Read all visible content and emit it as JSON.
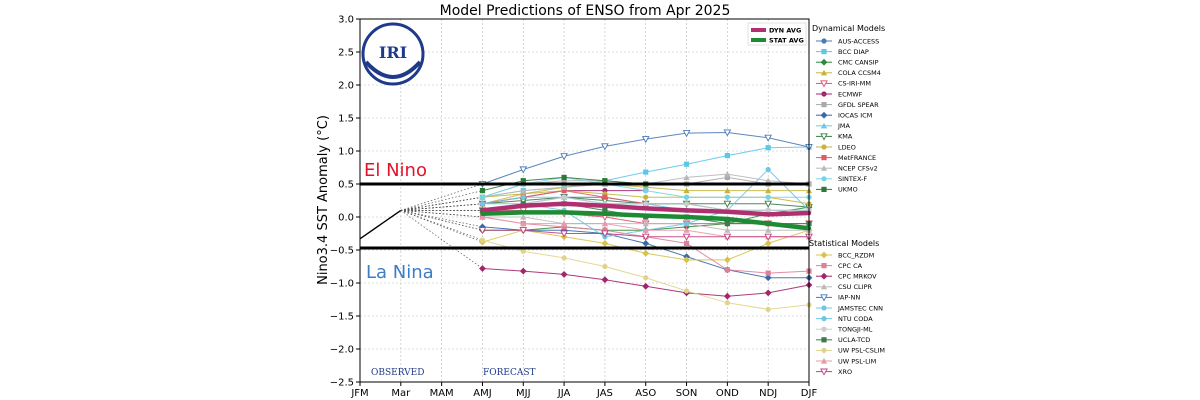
{
  "chart_data": {
    "type": "line",
    "title": "Model Predictions of ENSO from Apr 2025",
    "ylabel": "Nino3.4 SST Anomaly (°C)",
    "xlabel": "",
    "categories": [
      "JFM",
      "Mar",
      "MAM",
      "AMJ",
      "MJJ",
      "JJA",
      "JAS",
      "ASO",
      "SON",
      "OND",
      "NDJ",
      "DJF"
    ],
    "ylim": [
      -2.5,
      3.0
    ],
    "yticks": [
      "3.0",
      "2.5",
      "2.0",
      "1.5",
      "1.0",
      "0.5",
      "0.0",
      "−0.5",
      "−1.0",
      "−1.5",
      "−2.0",
      "−2.5"
    ],
    "ytick_values": [
      3.0,
      2.5,
      2.0,
      1.5,
      1.0,
      0.5,
      0.0,
      -0.5,
      -1.0,
      -1.5,
      -2.0,
      -2.5
    ],
    "grid": true,
    "thresholds": {
      "el_nino": 0.5,
      "la_nina": -0.47
    },
    "annotations": {
      "el_nino": "El Nino",
      "la_nina": "La Nina",
      "observed": "OBSERVED",
      "forecast": "FORECAST",
      "logo": "IRI"
    },
    "legend_placement": "right",
    "legend_headers": {
      "dynamical": "Dynamical Models",
      "statistical": "Statistical Models"
    },
    "average_legend": [
      {
        "name": "DYN AVG",
        "color": "#b0306f"
      },
      {
        "name": "STAT AVG",
        "color": "#1e8a34"
      }
    ],
    "observed_x": [
      "JFM",
      "Mar"
    ],
    "observed_values": [
      -0.33,
      0.1
    ],
    "averages": [
      {
        "name": "DYN AVG",
        "color": "#b0306f",
        "values": [
          0.1,
          0.17,
          0.2,
          0.17,
          0.13,
          0.1,
          0.08,
          0.04,
          0.06
        ]
      },
      {
        "name": "STAT AVG",
        "color": "#1e8a34",
        "values": [
          0.05,
          0.07,
          0.07,
          0.05,
          0.02,
          0.0,
          -0.03,
          -0.1,
          -0.17
        ]
      }
    ],
    "dynamical": [
      {
        "name": "AUS-ACCESS",
        "color": "#4a7ab5",
        "marker": "circle",
        "values": [
          0.1,
          0.2,
          0.3,
          0.3,
          0.2,
          0.2,
          0.1,
          0.1,
          0.1
        ]
      },
      {
        "name": "BCC DIAP",
        "color": "#5bc8e8",
        "marker": "square",
        "values": [
          0.3,
          0.4,
          0.45,
          0.55,
          0.68,
          0.8,
          0.93,
          1.05,
          1.06
        ]
      },
      {
        "name": "CMC CANSIP",
        "color": "#2e8b3d",
        "marker": "diamond",
        "values": [
          -0.2,
          -0.2,
          -0.15,
          -0.2,
          -0.2,
          -0.15,
          -0.1,
          0.05,
          0.15
        ]
      },
      {
        "name": "COLA CCSM4",
        "color": "#c8b43c",
        "marker": "triangle",
        "values": [
          0.2,
          0.35,
          0.45,
          0.5,
          0.45,
          0.4,
          0.4,
          0.4,
          0.4
        ]
      },
      {
        "name": "CS-IRI-MM",
        "color": "#e0506f",
        "marker": "tridown",
        "values": [
          0.1,
          0.1,
          0.05,
          0.0,
          -0.1,
          -0.1,
          -0.1,
          -0.1,
          -0.1
        ]
      },
      {
        "name": "ECMWF",
        "color": "#a3256b",
        "marker": "circle",
        "values": [
          0.2,
          0.3,
          0.4,
          0.4,
          0.4
        ]
      },
      {
        "name": "GFDL SPEAR",
        "color": "#aaaaaa",
        "marker": "square",
        "values": [
          0.3,
          0.5,
          0.55,
          0.55,
          0.5,
          0.5,
          0.6,
          0.5,
          0.5
        ]
      },
      {
        "name": "IOCAS ICM",
        "color": "#3d68a8",
        "marker": "diamond",
        "values": [
          -0.15,
          -0.2,
          -0.2,
          -0.25,
          -0.4,
          -0.6,
          -0.8,
          -0.92,
          -0.92
        ]
      },
      {
        "name": "JMA",
        "color": "#6fc7e8",
        "marker": "triangle",
        "values": [
          0.1,
          0.2,
          0.3,
          0.2,
          0.2
        ]
      },
      {
        "name": "KMA",
        "color": "#3a7d4a",
        "marker": "tridown",
        "values": [
          0.2,
          0.25,
          0.3,
          0.25,
          0.2,
          0.2,
          0.2,
          0.2,
          0.15
        ]
      },
      {
        "name": "LDEO",
        "color": "#c8b43c",
        "marker": "circle",
        "values": [
          0.3,
          0.35,
          0.4,
          0.35,
          0.3,
          0.3,
          0.3,
          0.3,
          0.2
        ]
      },
      {
        "name": "MetFRANCE",
        "color": "#e05a6a",
        "marker": "square",
        "values": [
          0.2,
          0.3,
          0.4,
          0.3,
          0.2
        ]
      },
      {
        "name": "NCEP CFSv2",
        "color": "#b8b8b8",
        "marker": "triangle",
        "values": [
          0.3,
          0.4,
          0.45,
          0.5,
          0.5,
          0.6,
          0.65,
          0.55,
          0.5
        ]
      },
      {
        "name": "SINTEX-F",
        "color": "#6fd6e8",
        "marker": "circle",
        "values": [
          0.3,
          0.5,
          0.6,
          0.5,
          0.4,
          0.3,
          0.3,
          0.3,
          0.3
        ]
      },
      {
        "name": "UKMO",
        "color": "#2d7a35",
        "marker": "square",
        "values": [
          0.4,
          0.55,
          0.6,
          0.55,
          0.5
        ]
      }
    ],
    "statistical": [
      {
        "name": "BCC_RZDM",
        "color": "#d8c24a",
        "marker": "diamond",
        "values": [
          -0.38,
          -0.2,
          -0.3,
          -0.4,
          -0.55,
          -0.65,
          -0.65,
          -0.4,
          -0.2
        ]
      },
      {
        "name": "CPC CA",
        "color": "#e07f9a",
        "marker": "square",
        "values": [
          0.0,
          -0.1,
          -0.15,
          -0.2,
          -0.3,
          -0.4,
          -0.8,
          -0.85,
          -0.82
        ]
      },
      {
        "name": "CPC MRKOV",
        "color": "#a3256b",
        "marker": "diamond",
        "values": [
          -0.78,
          -0.82,
          -0.87,
          -0.95,
          -1.05,
          -1.15,
          -1.2,
          -1.15,
          -1.03
        ]
      },
      {
        "name": "CSU CLIPR",
        "color": "#bbbbbb",
        "marker": "triangle",
        "values": [
          0.0,
          0.0,
          -0.1,
          -0.1,
          -0.1,
          -0.1,
          -0.2,
          -0.2,
          -0.2
        ]
      },
      {
        "name": "IAP-NN",
        "color": "#4a7ab5",
        "marker": "tridown",
        "values": [
          0.5,
          0.72,
          0.92,
          1.07,
          1.18,
          1.27,
          1.28,
          1.2,
          1.06
        ]
      },
      {
        "name": "JAMSTEC CNN",
        "color": "#6fc7e8",
        "marker": "circle",
        "values": [
          0.2,
          0.3,
          0.3,
          0.2,
          0.2,
          0.1,
          0.1,
          0.1,
          0.1
        ]
      },
      {
        "name": "NTU CODA",
        "color": "#6fc7e8",
        "marker": "circle",
        "values": [
          0.2,
          0.2,
          0.1,
          -0.3,
          -0.2,
          -0.1,
          0.1,
          0.72,
          0.1
        ]
      },
      {
        "name": "TONGJI-ML",
        "color": "#cccccc",
        "marker": "circle",
        "values": [
          0.1,
          0.2,
          0.3,
          0.2,
          0.2,
          0.2,
          0.1,
          0.1,
          0.1
        ]
      },
      {
        "name": "UCLA-TCD",
        "color": "#3a7d4a",
        "marker": "square",
        "values": [
          0.1,
          0.2,
          0.2,
          0.1,
          0.0,
          0.0,
          -0.1,
          -0.1,
          -0.1
        ]
      },
      {
        "name": "UW PSL-CSLIM",
        "color": "#e0d48a",
        "marker": "circle",
        "values": [
          -0.35,
          -0.52,
          -0.62,
          -0.75,
          -0.92,
          -1.12,
          -1.3,
          -1.4,
          -1.33
        ]
      },
      {
        "name": "UW PSL-LIM",
        "color": "#e89aa8",
        "marker": "triangle",
        "values": [
          0.0,
          -0.1,
          -0.1,
          -0.1,
          -0.2,
          -0.2,
          -0.3,
          -0.3,
          -0.3
        ]
      },
      {
        "name": "XRO",
        "color": "#c04080",
        "marker": "tridown",
        "values": [
          -0.2,
          -0.2,
          -0.25,
          -0.25,
          -0.3,
          -0.3,
          -0.3,
          -0.3,
          -0.3
        ]
      }
    ]
  }
}
